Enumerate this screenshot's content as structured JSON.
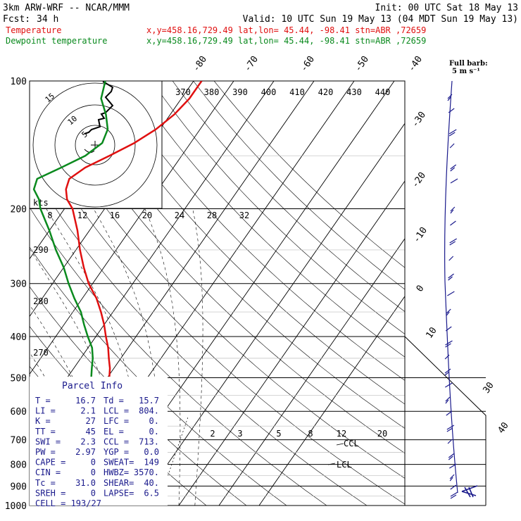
{
  "header": {
    "model": "3km ARW-WRF -- NCAR/MMM",
    "init": "Init: 00 UTC Sat 18 May 13",
    "fcst_label": "Fcst:",
    "fcst_hours": "34 h",
    "valid": "Valid: 10 UTC Sun 19 May 13 (04 MDT Sun 19 May 13)",
    "temperature_label": "Temperature",
    "dewpoint_label": "Dewpoint temperature",
    "location_line": "x,y=458.16,729.49   lat,lon= 45.44, -98.41   stn=ABR ,72659",
    "full_barb_label": "Full barb:",
    "full_barb_value": "5 m s⁻¹"
  },
  "colors": {
    "temperature": "#e01010",
    "dewpoint": "#0a8a1e",
    "wind_barbs": "#1a1a8c",
    "parcel_info": "#1a1a8c",
    "frame": "#000000"
  },
  "chart_data": {
    "type": "line",
    "diagram": "skew-T log-p",
    "pressure_range_hpa": [
      1000,
      100
    ],
    "pressure_levels": [
      100,
      200,
      300,
      400,
      500,
      600,
      700,
      800,
      900,
      1000
    ],
    "isotherm_labels": [
      "-80",
      "-70",
      "-60",
      "-50",
      "-40",
      "-30",
      "-20",
      "-10",
      "0",
      "10",
      "30",
      "40"
    ],
    "theta_labels": [
      "370",
      "380",
      "390",
      "400",
      "410",
      "420",
      "430",
      "440"
    ],
    "theta_left_labels": [
      "290",
      "280",
      "270"
    ],
    "mixing_ratio_labels": [
      "2",
      "3",
      "5",
      "8",
      "12",
      "20"
    ],
    "speed_axis_labels": [
      "8",
      "12",
      "16",
      "20",
      "24",
      "28",
      "32"
    ],
    "speed_axis_unit": "kts",
    "hodograph_rings": [
      "5",
      "10",
      "15"
    ],
    "series": [
      {
        "name": "Temperature",
        "points": [
          [
            960,
            12
          ],
          [
            940,
            14
          ],
          [
            920,
            16
          ],
          [
            900,
            17
          ],
          [
            880,
            12
          ],
          [
            860,
            10
          ],
          [
            840,
            9
          ],
          [
            820,
            8
          ],
          [
            800,
            7
          ],
          [
            780,
            6.5
          ],
          [
            760,
            6
          ],
          [
            740,
            5.5
          ],
          [
            720,
            5
          ],
          [
            700,
            4
          ],
          [
            680,
            2.5
          ],
          [
            660,
            1
          ],
          [
            640,
            0
          ],
          [
            620,
            -1.5
          ],
          [
            600,
            -3
          ],
          [
            575,
            -5
          ],
          [
            550,
            -6.5
          ],
          [
            525,
            -8
          ],
          [
            500,
            -9.5
          ],
          [
            475,
            -11
          ],
          [
            450,
            -13
          ],
          [
            425,
            -15
          ],
          [
            400,
            -17.5
          ],
          [
            375,
            -20
          ],
          [
            350,
            -23
          ],
          [
            325,
            -26.5
          ],
          [
            300,
            -31
          ],
          [
            275,
            -35
          ],
          [
            250,
            -39
          ],
          [
            225,
            -43
          ],
          [
            200,
            -48
          ],
          [
            190,
            -51
          ],
          [
            180,
            -53
          ],
          [
            170,
            -54
          ],
          [
            160,
            -52
          ],
          [
            150,
            -48
          ],
          [
            140,
            -44
          ],
          [
            130,
            -41
          ],
          [
            120,
            -39
          ],
          [
            110,
            -38
          ],
          [
            100,
            -38
          ]
        ]
      },
      {
        "name": "Dewpoint temperature",
        "points": [
          [
            960,
            9
          ],
          [
            940,
            5
          ],
          [
            920,
            3
          ],
          [
            900,
            2.5
          ],
          [
            880,
            2
          ],
          [
            860,
            2
          ],
          [
            840,
            2
          ],
          [
            820,
            1.5
          ],
          [
            800,
            1
          ],
          [
            780,
            0
          ],
          [
            760,
            -1
          ],
          [
            740,
            -2
          ],
          [
            720,
            -3
          ],
          [
            700,
            -4
          ],
          [
            680,
            -5
          ],
          [
            660,
            -6
          ],
          [
            640,
            -7
          ],
          [
            620,
            -8
          ],
          [
            600,
            -9
          ],
          [
            575,
            -10.5
          ],
          [
            550,
            -12
          ],
          [
            525,
            -13
          ],
          [
            500,
            -14
          ],
          [
            475,
            -15.5
          ],
          [
            450,
            -17
          ],
          [
            425,
            -19
          ],
          [
            400,
            -22
          ],
          [
            375,
            -25
          ],
          [
            350,
            -28
          ],
          [
            325,
            -32
          ],
          [
            300,
            -36
          ],
          [
            275,
            -40
          ],
          [
            250,
            -45
          ],
          [
            225,
            -50
          ],
          [
            200,
            -56
          ],
          [
            190,
            -58
          ],
          [
            180,
            -61
          ],
          [
            170,
            -62
          ],
          [
            160,
            -58
          ],
          [
            150,
            -54
          ],
          [
            140,
            -52
          ],
          [
            130,
            -53
          ],
          [
            120,
            -56
          ],
          [
            110,
            -60
          ],
          [
            100,
            -62
          ]
        ]
      }
    ],
    "annotations": [
      "LCL",
      "CCL"
    ],
    "parcel_info": {
      "title": "Parcel Info",
      "rows": [
        [
          "T   =",
          "16.7",
          "Td  =",
          "15.7"
        ],
        [
          "LI  =",
          "2.1",
          "LCL =",
          "804."
        ],
        [
          "K   =",
          "27",
          "LFC =",
          "0."
        ],
        [
          "TT  =",
          "45",
          "EL  =",
          "0."
        ],
        [
          "SWI =",
          "2.3",
          "CCL =",
          "713."
        ],
        [
          "PW  =",
          "2.97",
          "YGP =",
          "0.0"
        ],
        [
          "CAPE =",
          "0",
          "SWEAT=",
          "149"
        ],
        [
          "CIN  =",
          "0",
          "HWBZ=",
          "3570."
        ],
        [
          "Tc  =",
          "31.0",
          "SHEAR=",
          "40."
        ],
        [
          "SREH =",
          "0",
          "LAPSE=",
          "6.5"
        ]
      ],
      "cell": "CELL = 193/27"
    }
  }
}
